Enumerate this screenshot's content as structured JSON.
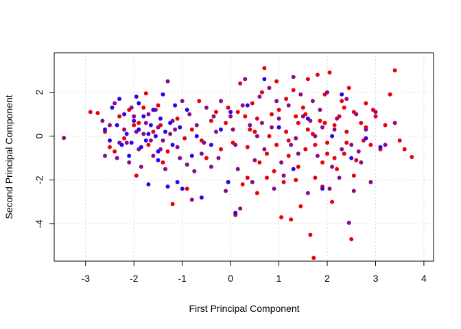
{
  "chart_data": {
    "type": "scatter",
    "title": "",
    "xlabel": "First Principal Component",
    "ylabel": "Second Principal Component",
    "xlim": [
      -3.65,
      4.2
    ],
    "ylim": [
      -5.7,
      3.8
    ],
    "x_ticks": [
      -3,
      -2,
      -1,
      0,
      1,
      2,
      3,
      4
    ],
    "y_ticks": [
      -4,
      -2,
      0,
      2
    ],
    "x_tick_labels": [
      "-3",
      "-2",
      "-1",
      "0",
      "1",
      "2",
      "3",
      "4"
    ],
    "y_tick_labels": [
      "-4",
      "-2",
      "0",
      "2"
    ],
    "grid": true,
    "legend": "none",
    "colors": {
      "red": "#e8000b",
      "purple": "#8b0a85",
      "blue": "#2d00f0"
    },
    "series": [
      {
        "color_key": "red",
        "points": [
          [
            -2.9,
            1.1
          ],
          [
            -2.75,
            1.05
          ],
          [
            -2.6,
            0.2
          ],
          [
            -2.5,
            -0.5
          ],
          [
            -2.3,
            0.9
          ],
          [
            -2.2,
            -0.1
          ],
          [
            -2.1,
            1.2
          ],
          [
            -1.95,
            -1.8
          ],
          [
            -1.9,
            0.6
          ],
          [
            -1.8,
            1.3
          ],
          [
            -1.7,
            -0.4
          ],
          [
            -1.6,
            0.2
          ],
          [
            -1.5,
            1.4
          ],
          [
            -1.3,
            -0.7
          ],
          [
            -1.2,
            -3.1
          ],
          [
            -1.1,
            0.8
          ],
          [
            -0.9,
            -2.4
          ],
          [
            -0.8,
            0.3
          ],
          [
            -0.65,
            1.6
          ],
          [
            -0.5,
            -1.0
          ],
          [
            -0.4,
            0.7
          ],
          [
            -0.3,
            1.1
          ],
          [
            -0.2,
            -0.6
          ],
          [
            -0.05,
            1.3
          ],
          [
            0.05,
            -0.3
          ],
          [
            0.1,
            -3.6
          ],
          [
            0.2,
            2.4
          ],
          [
            0.3,
            0.9
          ],
          [
            0.35,
            -1.9
          ],
          [
            0.45,
            1.5
          ],
          [
            0.5,
            0.2
          ],
          [
            0.55,
            -2.6
          ],
          [
            0.65,
            2.0
          ],
          [
            0.7,
            3.1
          ],
          [
            0.75,
            -0.8
          ],
          [
            0.85,
            1.0
          ],
          [
            0.9,
            -1.6
          ],
          [
            0.95,
            2.5
          ],
          [
            1.0,
            0.4
          ],
          [
            1.05,
            -3.7
          ],
          [
            1.1,
            -2.1
          ],
          [
            1.15,
            1.7
          ],
          [
            1.2,
            -0.2
          ],
          [
            1.25,
            -3.8
          ],
          [
            1.3,
            2.1
          ],
          [
            1.35,
            0.9
          ],
          [
            1.4,
            -1.4
          ],
          [
            1.45,
            -3.2
          ],
          [
            1.5,
            1.3
          ],
          [
            1.55,
            -0.6
          ],
          [
            1.6,
            2.6
          ],
          [
            1.65,
            -4.5
          ],
          [
            1.7,
            0.1
          ],
          [
            1.75,
            -1.9
          ],
          [
            1.8,
            2.8
          ],
          [
            1.85,
            0.7
          ],
          [
            1.9,
            -1.2
          ],
          [
            1.95,
            1.9
          ],
          [
            2.0,
            -0.3
          ],
          [
            2.05,
            2.9
          ],
          [
            2.1,
            -3.0
          ],
          [
            2.15,
            0.5
          ],
          [
            2.2,
            -1.5
          ],
          [
            2.3,
            1.6
          ],
          [
            2.35,
            -0.8
          ],
          [
            2.4,
            0.2
          ],
          [
            2.45,
            2.2
          ],
          [
            2.5,
            -4.7
          ],
          [
            2.55,
            1.1
          ],
          [
            2.6,
            -1.1
          ],
          [
            2.7,
            0.6
          ],
          [
            2.8,
            1.5
          ],
          [
            2.9,
            -0.4
          ],
          [
            3.0,
            0.9
          ],
          [
            3.1,
            -0.6
          ],
          [
            3.2,
            0.5
          ],
          [
            3.3,
            1.9
          ],
          [
            3.4,
            3.0
          ],
          [
            3.5,
            -0.2
          ],
          [
            3.6,
            -0.6
          ],
          [
            3.75,
            -0.95
          ],
          [
            1.72,
            -5.55
          ],
          [
            -1.75,
            1.95
          ],
          [
            -1.45,
            0.5
          ],
          [
            -0.95,
            -0.1
          ],
          [
            0.25,
            -2.2
          ],
          [
            0.6,
            -1.2
          ],
          [
            1.0,
            1.2
          ],
          [
            1.4,
            0.6
          ],
          [
            1.9,
            -2.3
          ],
          [
            2.25,
            0.9
          ],
          [
            2.75,
            -0.2
          ],
          [
            0.4,
            0.3
          ],
          [
            0.8,
            0.0
          ],
          [
            1.2,
            -0.9
          ],
          [
            1.6,
            0.3
          ],
          [
            2.0,
            -0.8
          ],
          [
            2.4,
            -0.3
          ],
          [
            2.8,
            0.4
          ],
          [
            -0.1,
            0.6
          ],
          [
            -0.6,
            -0.2
          ],
          [
            -2.4,
            -0.7
          ],
          [
            -2.0,
            0.5
          ],
          [
            -1.4,
            -1.2
          ],
          [
            0.15,
            1.1
          ],
          [
            0.35,
            -0.5
          ],
          [
            0.55,
            0.8
          ],
          [
            0.75,
            -1.9
          ],
          [
            0.95,
            -0.4
          ],
          [
            1.15,
            0.2
          ],
          [
            1.35,
            -2.0
          ],
          [
            1.55,
            1.0
          ],
          [
            1.75,
            -0.4
          ],
          [
            1.95,
            0.6
          ],
          [
            2.15,
            -1.0
          ],
          [
            2.35,
            1.3
          ],
          [
            2.55,
            -1.8
          ],
          [
            2.95,
            1.2
          ]
        ]
      },
      {
        "color_key": "purple",
        "points": [
          [
            -3.45,
            -0.08
          ],
          [
            -2.6,
            -0.9
          ],
          [
            -2.5,
            0.5
          ],
          [
            -2.4,
            1.5
          ],
          [
            -2.3,
            -0.3
          ],
          [
            -2.2,
            0.3
          ],
          [
            -2.1,
            -1.2
          ],
          [
            -2.0,
            0.9
          ],
          [
            -1.9,
            -0.6
          ],
          [
            -1.8,
            0.1
          ],
          [
            -1.7,
            1.0
          ],
          [
            -1.6,
            -0.9
          ],
          [
            -1.5,
            0.4
          ],
          [
            -1.4,
            -0.2
          ],
          [
            -1.3,
            2.5
          ],
          [
            -1.2,
            0.7
          ],
          [
            -1.1,
            -0.5
          ],
          [
            -1.0,
            1.6
          ],
          [
            -0.9,
            -1.3
          ],
          [
            -0.8,
            -2.9
          ],
          [
            -0.7,
            0.5
          ],
          [
            -0.6,
            -0.8
          ],
          [
            -0.5,
            1.3
          ],
          [
            -0.4,
            -1.4
          ],
          [
            -0.3,
            0.2
          ],
          [
            -0.2,
            1.6
          ],
          [
            -0.1,
            -2.5
          ],
          [
            0.0,
            0.9
          ],
          [
            0.1,
            -0.4
          ],
          [
            0.2,
            -3.3
          ],
          [
            0.3,
            2.6
          ],
          [
            0.4,
            0.5
          ],
          [
            0.5,
            -1.1
          ],
          [
            0.6,
            1.8
          ],
          [
            0.7,
            -0.6
          ],
          [
            0.8,
            2.2
          ],
          [
            0.9,
            -2.4
          ],
          [
            1.0,
            0.8
          ],
          [
            1.1,
            -1.8
          ],
          [
            1.2,
            1.4
          ],
          [
            1.3,
            2.7
          ],
          [
            1.4,
            -0.8
          ],
          [
            1.5,
            0.9
          ],
          [
            1.6,
            -2.6
          ],
          [
            1.7,
            1.6
          ],
          [
            1.8,
            -0.9
          ],
          [
            1.9,
            0.4
          ],
          [
            2.0,
            2.0
          ],
          [
            2.1,
            -1.4
          ],
          [
            2.2,
            0.8
          ],
          [
            2.3,
            -0.6
          ],
          [
            2.4,
            1.7
          ],
          [
            2.45,
            -3.95
          ],
          [
            2.5,
            -0.4
          ],
          [
            2.6,
            1.0
          ],
          [
            2.7,
            -1.2
          ],
          [
            2.8,
            0.3
          ],
          [
            2.9,
            -2.1
          ],
          [
            3.0,
            1.1
          ],
          [
            3.2,
            -0.4
          ],
          [
            3.4,
            0.6
          ],
          [
            -2.65,
            0.7
          ],
          [
            -2.35,
            -1.0
          ],
          [
            -2.05,
            1.3
          ],
          [
            -1.85,
            -1.4
          ],
          [
            -1.55,
            1.2
          ],
          [
            -1.35,
            -1.5
          ],
          [
            -1.15,
            0.3
          ],
          [
            -0.85,
            1.0
          ],
          [
            -0.55,
            -0.3
          ],
          [
            -0.25,
            -1.0
          ],
          [
            0.05,
            0.3
          ],
          [
            0.45,
            -2.1
          ],
          [
            0.85,
            0.4
          ],
          [
            1.25,
            -0.4
          ],
          [
            1.65,
            0.7
          ],
          [
            2.05,
            -2.4
          ],
          [
            2.65,
            -0.7
          ],
          [
            -2.15,
            -0.3
          ],
          [
            -1.95,
            0.2
          ],
          [
            -1.65,
            -0.2
          ],
          [
            -1.25,
            0.1
          ],
          [
            -0.75,
            -1.6
          ],
          [
            -0.35,
            0.9
          ],
          [
            0.25,
            1.4
          ],
          [
            0.65,
            0.6
          ],
          [
            1.05,
            -1.2
          ],
          [
            1.45,
            1.9
          ],
          [
            1.85,
            1.2
          ],
          [
            2.25,
            -1.9
          ],
          [
            2.55,
            -2.5
          ],
          [
            -1.75,
            0.6
          ],
          [
            -1.45,
            -0.6
          ],
          [
            -1.05,
            -1.0
          ],
          [
            0.15,
            -1.5
          ],
          [
            0.55,
            0.0
          ],
          [
            0.95,
            1.6
          ],
          [
            1.35,
            -0.1
          ],
          [
            1.75,
            0.0
          ],
          [
            2.15,
            0.3
          ]
        ]
      },
      {
        "color_key": "blue",
        "points": [
          [
            -2.6,
            0.3
          ],
          [
            -2.5,
            -0.2
          ],
          [
            -2.45,
            1.3
          ],
          [
            -2.35,
            0.5
          ],
          [
            -2.25,
            -0.4
          ],
          [
            -2.2,
            1.0
          ],
          [
            -2.15,
            0.1
          ],
          [
            -2.05,
            -0.3
          ],
          [
            -2.0,
            0.7
          ],
          [
            -1.95,
            1.8
          ],
          [
            -1.9,
            0.3
          ],
          [
            -1.85,
            -0.5
          ],
          [
            -1.8,
            0.9
          ],
          [
            -1.75,
            -0.2
          ],
          [
            -1.7,
            -2.2
          ],
          [
            -1.65,
            0.5
          ],
          [
            -1.6,
            1.2
          ],
          [
            -1.55,
            0.0
          ],
          [
            -1.5,
            -0.7
          ],
          [
            -1.45,
            0.8
          ],
          [
            -1.4,
            1.9
          ],
          [
            -1.35,
            0.2
          ],
          [
            -1.3,
            -2.3
          ],
          [
            -1.25,
            0.6
          ],
          [
            -1.2,
            -0.4
          ],
          [
            -1.1,
            -2.1
          ],
          [
            -1.05,
            0.4
          ],
          [
            -1.0,
            -2.4
          ],
          [
            -0.9,
            1.2
          ],
          [
            -0.8,
            -0.9
          ],
          [
            -0.7,
            0.0
          ],
          [
            -0.6,
            -2.8
          ],
          [
            -0.4,
            -0.4
          ],
          [
            -0.2,
            0.3
          ],
          [
            -0.05,
            -2.1
          ],
          [
            0.0,
            1.1
          ],
          [
            0.1,
            -3.5
          ],
          [
            0.35,
            1.4
          ],
          [
            0.7,
            2.6
          ],
          [
            1.0,
            0.4
          ],
          [
            1.3,
            -1.5
          ],
          [
            1.6,
            0.8
          ],
          [
            1.9,
            -2.4
          ],
          [
            2.1,
            0.0
          ],
          [
            2.3,
            1.9
          ],
          [
            2.5,
            -1.0
          ],
          [
            2.8,
            -0.1
          ],
          [
            3.1,
            -0.5
          ],
          [
            -2.3,
            1.7
          ],
          [
            -2.1,
            -0.9
          ],
          [
            -1.9,
            1.5
          ],
          [
            -1.7,
            0.1
          ],
          [
            -1.5,
            -1.1
          ],
          [
            -1.15,
            1.4
          ]
        ]
      }
    ]
  }
}
